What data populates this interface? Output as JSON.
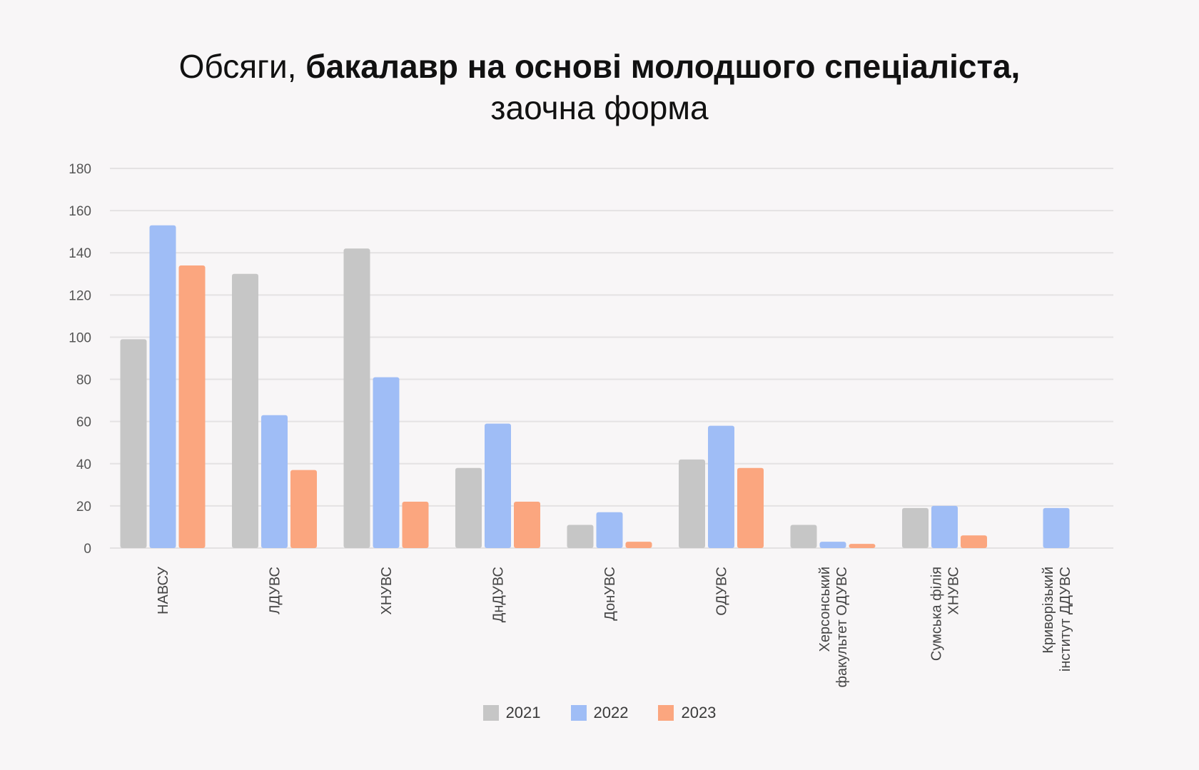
{
  "chart_data": {
    "type": "bar",
    "title_normal_1": "Обсяги, ",
    "title_bold": "бакалавр на основі молодшого спеціаліста,",
    "title_line2": "заочна форма",
    "categories": [
      "НАВСУ",
      "ЛДУВС",
      "ХНУВС",
      "ДнДУВС",
      "ДонУВС",
      "ОДУВС",
      [
        "Херсонський",
        "факультет ОДУВС"
      ],
      [
        "Сумська філія",
        "ХНУВС"
      ],
      [
        "Криворізький",
        "інститут ДДУВС"
      ]
    ],
    "series": [
      {
        "name": "2021",
        "color": "#c6c6c6",
        "values": [
          99,
          130,
          142,
          38,
          11,
          42,
          11,
          19,
          null
        ]
      },
      {
        "name": "2022",
        "color": "#9fbdf6",
        "values": [
          153,
          63,
          81,
          59,
          17,
          58,
          3,
          20,
          19
        ]
      },
      {
        "name": "2023",
        "color": "#fba67f",
        "values": [
          134,
          37,
          22,
          22,
          3,
          38,
          2,
          6,
          null
        ]
      }
    ],
    "yticks": [
      0,
      20,
      40,
      60,
      80,
      100,
      120,
      140,
      160,
      180
    ],
    "ylim": [
      0,
      180
    ],
    "grid": true,
    "legend_position": "bottom-center"
  }
}
